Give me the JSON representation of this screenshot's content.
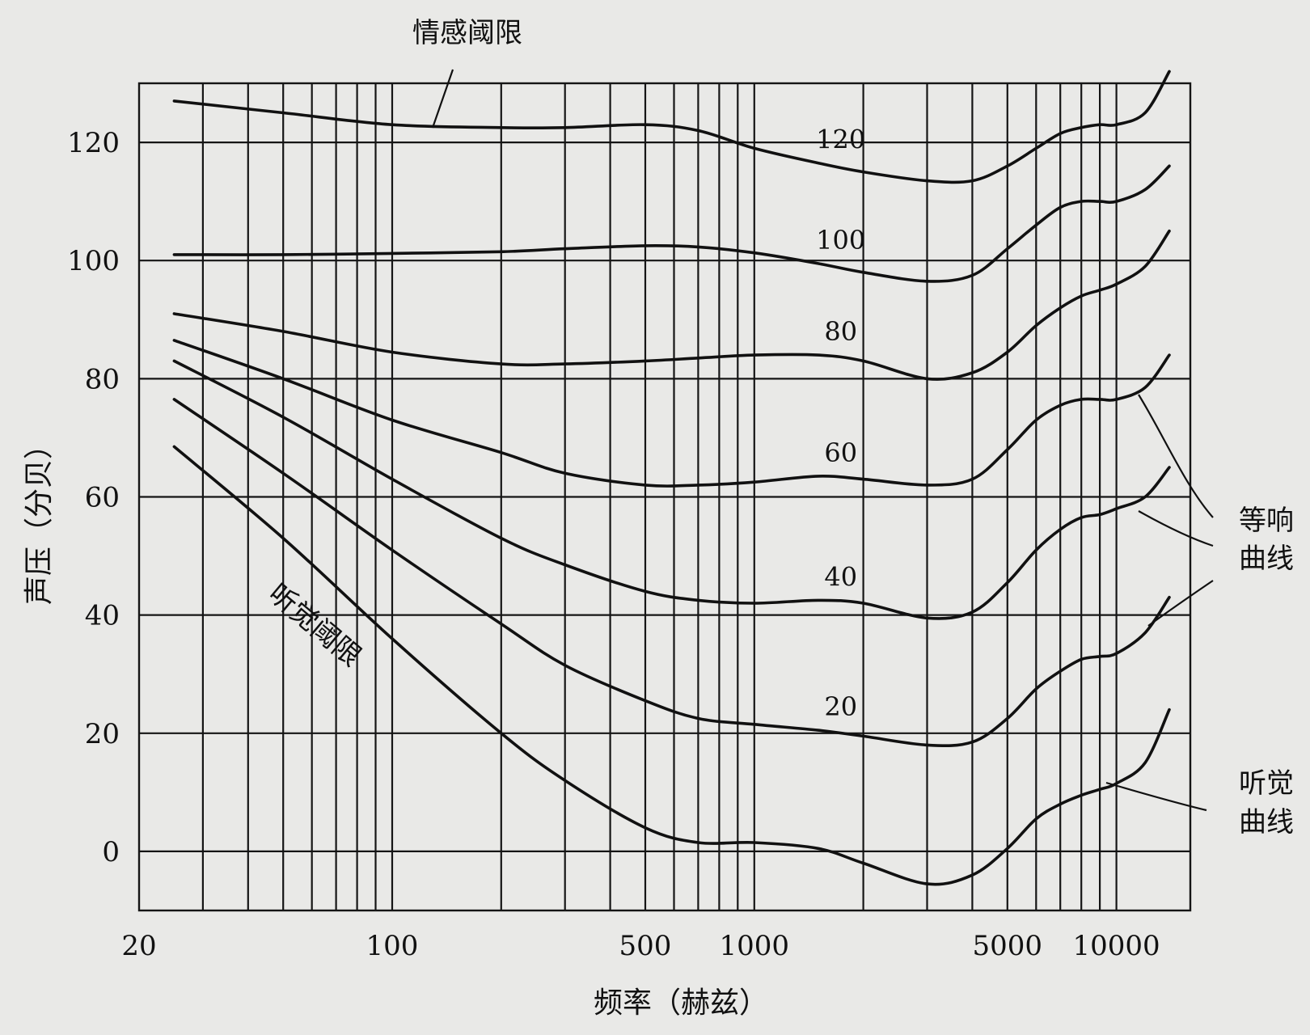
{
  "chart_data": {
    "type": "line",
    "title": "",
    "xlabel": "频率（赫兹）",
    "ylabel": "声压（分贝）",
    "x_scale": "log",
    "xlim": [
      20,
      16000
    ],
    "ylim": [
      -10,
      130
    ],
    "grid": true,
    "x_tick_labels": [
      {
        "value": 20,
        "label": "20"
      },
      {
        "value": 100,
        "label": "100"
      },
      {
        "value": 500,
        "label": "500"
      },
      {
        "value": 1000,
        "label": "1000"
      },
      {
        "value": 5000,
        "label": "5000"
      },
      {
        "value": 10000,
        "label": "10000"
      }
    ],
    "x_grid_values": [
      30,
      40,
      50,
      60,
      70,
      80,
      90,
      100,
      200,
      300,
      400,
      500,
      600,
      700,
      800,
      900,
      1000,
      2000,
      3000,
      4000,
      5000,
      6000,
      7000,
      8000,
      9000,
      10000
    ],
    "y_ticks": [
      0,
      20,
      40,
      60,
      80,
      100,
      120
    ],
    "y_tick_labels": [
      "0",
      "20",
      "40",
      "60",
      "80",
      "100",
      "120"
    ],
    "curve_labels": [
      "120",
      "100",
      "80",
      "60",
      "40",
      "20"
    ],
    "annotations": {
      "pain_threshold": "情感阈限",
      "hearing_threshold": "听觉阈限",
      "equal_loudness_line1": "等响",
      "equal_loudness_line2": "曲线",
      "hearing_curve_line1": "听觉",
      "hearing_curve_line2": "曲线"
    },
    "series": [
      {
        "x": [
          25,
          50,
          100,
          200,
          300,
          500,
          700,
          1000,
          1500,
          2000,
          3000,
          4000,
          5000,
          6000,
          7000,
          8000,
          9000,
          10000,
          12000,
          14000
        ],
        "y": [
          127,
          125,
          123,
          122.5,
          122.5,
          123,
          122,
          119,
          116.5,
          115,
          113.5,
          113.5,
          116,
          119,
          121.5,
          122.5,
          123,
          123,
          125,
          132
        ]
      },
      {
        "x": [
          25,
          50,
          100,
          200,
          300,
          500,
          700,
          1000,
          1500,
          2000,
          3000,
          4000,
          5000,
          6000,
          7000,
          8000,
          9000,
          10000,
          12000,
          14000
        ],
        "y": [
          101,
          101,
          101.2,
          101.5,
          102,
          102.5,
          102.3,
          101.3,
          99.5,
          98,
          96.5,
          97.5,
          102,
          106,
          109,
          110,
          110,
          110,
          112,
          116
        ]
      },
      {
        "x": [
          25,
          50,
          100,
          200,
          300,
          500,
          700,
          1000,
          1500,
          2000,
          3000,
          4000,
          5000,
          6000,
          7000,
          8000,
          9000,
          10000,
          12000,
          14000
        ],
        "y": [
          91,
          88,
          84.5,
          82.5,
          82.5,
          83,
          83.5,
          84,
          84,
          83,
          80,
          81,
          84.5,
          89,
          92,
          94,
          95,
          96,
          99,
          105
        ]
      },
      {
        "x": [
          25,
          50,
          100,
          200,
          300,
          500,
          700,
          1000,
          1500,
          2000,
          3000,
          4000,
          5000,
          6000,
          7000,
          8000,
          9000,
          10000,
          12000,
          14000
        ],
        "y": [
          86.5,
          80,
          73,
          67.5,
          64,
          62,
          62,
          62.5,
          63.5,
          63,
          62,
          63,
          68,
          73,
          75.5,
          76.5,
          76.5,
          76.5,
          78.5,
          84
        ]
      },
      {
        "x": [
          25,
          50,
          100,
          200,
          300,
          500,
          700,
          1000,
          1500,
          2000,
          3000,
          4000,
          5000,
          6000,
          7000,
          8000,
          9000,
          10000,
          12000,
          14000
        ],
        "y": [
          83,
          73.5,
          63,
          53,
          48.5,
          44,
          42.5,
          42,
          42.5,
          42,
          39.5,
          40.5,
          45.5,
          51,
          54.5,
          56.5,
          57,
          58,
          60,
          65
        ]
      },
      {
        "x": [
          25,
          50,
          100,
          200,
          300,
          500,
          700,
          1000,
          1500,
          2000,
          3000,
          4000,
          5000,
          6000,
          7000,
          8000,
          9000,
          10000,
          12000,
          14000
        ],
        "y": [
          76.5,
          64,
          51,
          38.5,
          31.5,
          25.5,
          22.5,
          21.5,
          20.5,
          19.5,
          18,
          18.5,
          22.5,
          27.5,
          30.5,
          32.5,
          33,
          33.5,
          37,
          43
        ]
      },
      {
        "x": [
          25,
          50,
          100,
          200,
          300,
          500,
          700,
          1000,
          1500,
          2000,
          3000,
          4000,
          5000,
          6000,
          7000,
          8000,
          9000,
          10000,
          12000,
          14000
        ],
        "y": [
          68.5,
          53,
          36,
          20,
          12,
          4,
          1.5,
          1.5,
          0.5,
          -2,
          -5.5,
          -4,
          0.5,
          5.5,
          8,
          9.5,
          10.5,
          11.5,
          15,
          24
        ]
      }
    ]
  }
}
